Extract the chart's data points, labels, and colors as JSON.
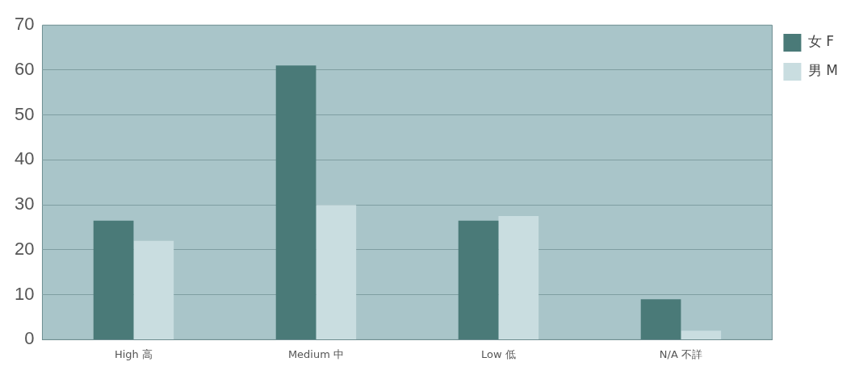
{
  "chart_data": {
    "type": "bar",
    "categories": [
      "High 高",
      "Medium 中",
      "Low 低",
      "N/A 不詳"
    ],
    "series": [
      {
        "name": "女 F",
        "color": "#4a7a78",
        "values": [
          26.5,
          61,
          26.5,
          9
        ]
      },
      {
        "name": "男 M",
        "color": "#c9dde0",
        "values": [
          22,
          30,
          27.5,
          2
        ]
      }
    ],
    "ylim": [
      0,
      70
    ],
    "yticks": [
      0,
      10,
      20,
      30,
      40,
      50,
      60,
      70
    ],
    "grid": "y",
    "legend": "top right"
  }
}
